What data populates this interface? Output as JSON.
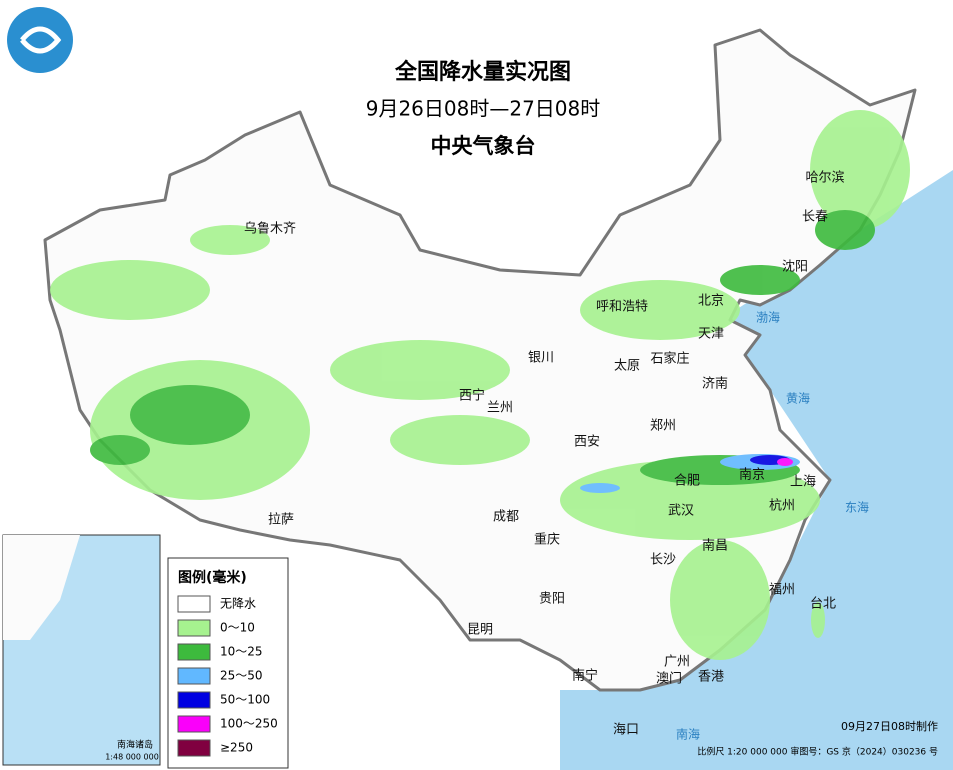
{
  "header": {
    "title": "全国降水量实况图",
    "period": "9月26日08时—27日08时",
    "agency": "中央气象台"
  },
  "cities": [
    "哈尔滨",
    "长春",
    "沈阳",
    "乌鲁木齐",
    "呼和浩特",
    "北京",
    "天津",
    "银川",
    "太原",
    "石家庄",
    "西宁",
    "兰州",
    "济南",
    "郑州",
    "西安",
    "南京",
    "合肥",
    "上海",
    "杭州",
    "武汉",
    "成都",
    "重庆",
    "拉萨",
    "南昌",
    "长沙",
    "福州",
    "台北",
    "贵阳",
    "昆明",
    "广州",
    "南宁",
    "澳门",
    "香港",
    "海口"
  ],
  "seas": [
    "渤海",
    "黄海",
    "东海",
    "南海"
  ],
  "legend": {
    "title": "图例(毫米)",
    "items": [
      {
        "label": "无降水",
        "color": "#ffffff"
      },
      {
        "label": "0～10",
        "color": "#a6f28f"
      },
      {
        "label": "10～25",
        "color": "#3dba3d"
      },
      {
        "label": "25～50",
        "color": "#61b8ff"
      },
      {
        "label": "50～100",
        "color": "#0000e1"
      },
      {
        "label": "100～250",
        "color": "#fa00fa"
      },
      {
        "label": "≥250",
        "color": "#800040"
      }
    ]
  },
  "inset": {
    "label": "南海诸岛",
    "scale": "1:48 000 000"
  },
  "footer": {
    "made": "09月27日08时制作",
    "scale": "比例尺 1:20 000 000  审图号：GS 京（2024）030236 号"
  }
}
